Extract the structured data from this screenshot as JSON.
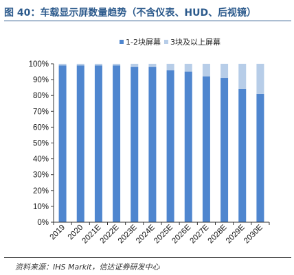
{
  "title": "图 40：车载显示屏数量趋势（不含仪表、HUD、后视镜）",
  "source": "资料来源：IHS Markit，信达证券研发中心",
  "colors": {
    "title": "#2c5a8c",
    "series1": "#4f86cf",
    "series2": "#b7cde8",
    "axis": "#333333"
  },
  "chart_data": {
    "type": "bar",
    "stacked": true,
    "categories": [
      "2019",
      "2020",
      "2021E",
      "2022E",
      "2023E",
      "2024E",
      "2025E",
      "2026E",
      "2027E",
      "2028E",
      "2029E",
      "2030E"
    ],
    "series": [
      {
        "name": "1-2块屏幕",
        "values": [
          99,
          99,
          99,
          99,
          98,
          98,
          96,
          95,
          92,
          91,
          84,
          81
        ]
      },
      {
        "name": "3块及以上屏幕",
        "values": [
          1,
          1,
          1,
          1,
          2,
          2,
          4,
          5,
          8,
          9,
          16,
          19
        ]
      }
    ],
    "y_ticks": [
      "0%",
      "10%",
      "20%",
      "30%",
      "40%",
      "50%",
      "60%",
      "70%",
      "80%",
      "90%",
      "100%"
    ],
    "ylim": [
      0,
      100
    ],
    "legend_position": "top-right",
    "grid": false
  }
}
